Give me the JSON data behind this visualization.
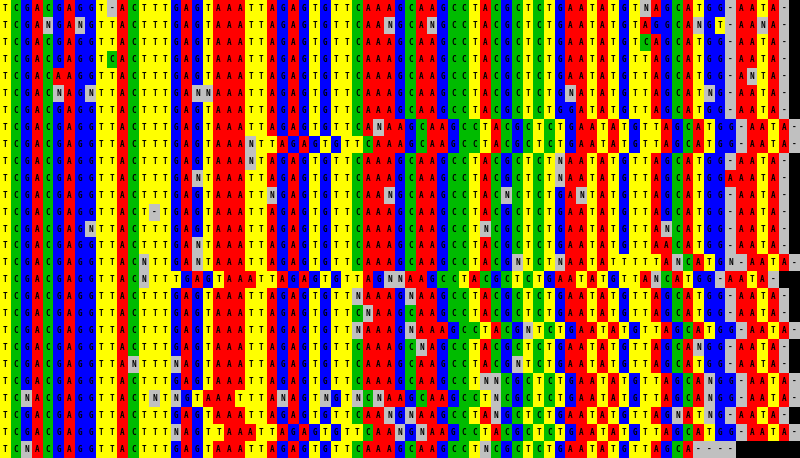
{
  "sequences": [
    "TCGACGAGGT-ACTTTGAGTAAATTAGAGTGTTCAAAGCAAGCCTACGCTCTGAATATGTNAGCATGG-AATA-",
    "TCGANGANGTTACTTTGAGTAAATTAGAGTGTTCAANGCANGCCTACGCTCTGAATATGTAGGCANGT-AANA-",
    "TCGACGAGGTTACTTTGAGTAAATTAGAGTGTTCAAAGCAAGCCTACGCTCTGAATATGTCAGCATGG-AATA-",
    "TCGACGAGGTCACTTTGAGTAAATTAGAGTGTTCAAAGCAAGCCTACGCTCTGAATATGTTAGCATGG-AATA-",
    "TCGACAAGGTTACTTTGAGTAAATTAGAGTGTTCAAAGCAAGCCTACGCTCTGAATATGTTAGCATGG-ANTA-",
    "TCGACNAGNTTACTTTGANNAAATTAGAGTGTTCAAAGCAAGCCTACGCTCTGNATATGTTAGCATNG-AATA-",
    "TCGACGAGGTTACTTTGAGTAAATTAGAGTGTTCAAAGCAAGCCTACGCTCTGGATATGTTAGCATGG-AATA-",
    "TCGACGAGGTTACTTTGAGTAAATTAGAGTGTTCANAAGCAAGCCTACGCTCTGAATATGTTAGCATGG-AATA-",
    "TCGACGAGGTTACTTTGAGTAAANTTAGAGTGTTCAAAGCAAGCCTACGCTCTGAATATGTTAGCATGG-AATA-",
    "TCGACGAGGTTACTTTGAGTAAANTAGAGTGTTCAAAGCAAGCCTACGCTCTNAATATGTTAGCATGG-AATA-",
    "TCGACGAGGTTACTTTGANTAAATTAGAGTGTTCAAAGCAAGCCTACGCTCTNAATATGTTAGCATGGAAATA-",
    "TCGACGAGGTTACTTTGAGTAAATTNGAGTGTTCAANGCAAGCCTACNCTCTGANTATGTTAGCATGG-AATA-",
    "TCGACGAGGTTACT-TGAGTAAATTAGAGTGTTCAAAGCAAGCCTACGCTCTGAATATGTTAGCATGG-AATA-",
    "TCGACGAGNTTACTTTGAGTAAATTAGAGTGTTCAAAGCAAGCCTNCGCTCTGAATATGTTANCATGG-AATA-",
    "TCGACGAGGTTACTTTGANTAAATTAGAGTGTTCAAAGCAAGCCTACGCTCTGAATATGTTAACATGG-AATA-",
    "TCGACGAGGTTACNTTGANTAAATTAGAGTGTTCAAAGCAAGCCTACGNTCTNAATATTTTTANCATGN-AATA-",
    "TCGACGAGGTTACNTTTGAGTAAATTAGAGTGTTAGNNAAGCCTACGCTCTGAATATGTTANCATGG-AATA-",
    "TCGACGAGGTTACTTTGAGTAAATTAGAGTGTTNAAAGNAAGCCTACGCTCTGAATATGTTAGCATGG-AATA-",
    "TCGACGAGGTTACTTTGAGTAAATTAGAGTGTTCNAAGCAAGCCTACGCTCTGAATATGTTAGCATGG-AATA-",
    "TCGACGAGGTTACTTTGAGTAAATTAGAGTGTTNAAAGNAAAGCCTACGNTCTGAATATGTTAGCATGG-AATA-",
    "TCGACGAGGTTACTTTGAGTAAATTAGAGTGTTCAAAGCNAGCCTACGCTCTGAATATGTTAGCANGG-AATA-",
    "TCGACGAGGTTANTTTNAGTAAATTAGAGTGTTCAAAGCAAGCCTACGNTCTGAATATGTTAGCATGG-AATA-",
    "TCGACGAGGTTACTTTGAGTAAATTAGAGTGTTCAAAGCAAGCCTNNCGCTCTGAATATGTTAGCANGG-AATA-",
    "TCNACGAGGTTACTNTNGTAAATTTANAGTNGTNCNAAGCAAGCCTNCGCTCTGAATATGTTAGCANGG-AATA-",
    "TCGACGAGGTTACTTTGAGTAAATTAGAGTGTTCAANGNAAGCCTANGCTCTGAATATGTTAGNATNG-AATA-",
    "TCGACGAGGTTACTTTNAGTTAAATTAGAGTGTTCAANGNAAGCCTACGCTCTGAATATGTTAGCATGG-AATA-",
    "TCNACGAGGTTACTTTGAGTAAATTAGAGTGTTCAAAGCAAGCCTNCGCTCTGAATATGTTAGCA----"
  ],
  "base_colors": {
    "A": "#FF0000",
    "T": "#FFFF00",
    "G": "#0000FF",
    "C": "#00BB00",
    "N": "#C0C0C0",
    "-": "#C0C0C0",
    " ": "#000000"
  },
  "text_color": "#000000",
  "bg_color": "#000000",
  "font_size": 5.5,
  "fig_width": 8.0,
  "fig_height": 4.58,
  "dpi": 100
}
